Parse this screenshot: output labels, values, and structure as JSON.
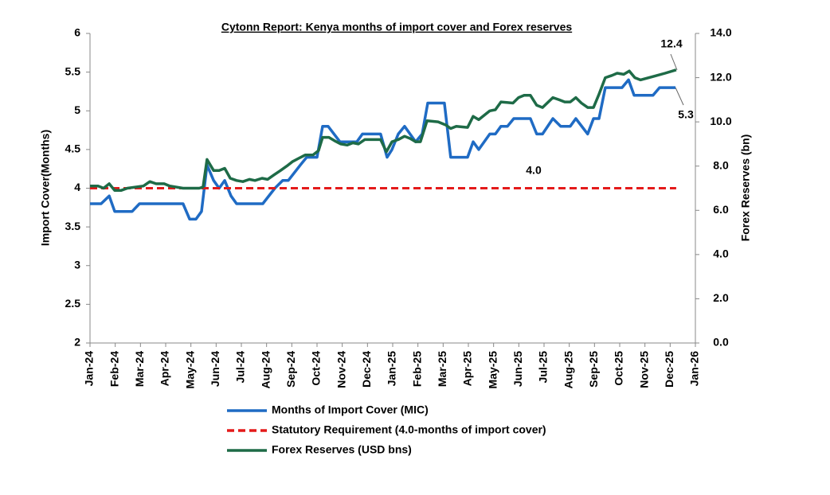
{
  "chart_data": {
    "type": "line",
    "title": "Cytonn Report: Kenya months of import cover and Forex reserves",
    "ylabel": "Import Cover(Months)",
    "y2label": "Forex Reserves (bn)",
    "xlim": [
      0,
      24
    ],
    "xticks": [
      {
        "value": 0,
        "label": "Jan-24"
      },
      {
        "value": 1,
        "label": "Feb-24"
      },
      {
        "value": 2,
        "label": "Mar-24"
      },
      {
        "value": 3,
        "label": "Apr-24"
      },
      {
        "value": 4,
        "label": "May-24"
      },
      {
        "value": 5,
        "label": "Jun-24"
      },
      {
        "value": 6,
        "label": "Jul-24"
      },
      {
        "value": 7,
        "label": "Aug-24"
      },
      {
        "value": 8,
        "label": "Sep-24"
      },
      {
        "value": 9,
        "label": "Oct-24"
      },
      {
        "value": 10,
        "label": "Nov-24"
      },
      {
        "value": 11,
        "label": "Dec-24"
      },
      {
        "value": 12,
        "label": "Jan-25"
      },
      {
        "value": 13,
        "label": "Feb-25"
      },
      {
        "value": 14,
        "label": "Mar-25"
      },
      {
        "value": 15,
        "label": "Apr-25"
      },
      {
        "value": 16,
        "label": "May-25"
      },
      {
        "value": 17,
        "label": "Jun-25"
      },
      {
        "value": 18,
        "label": "Jul-25"
      },
      {
        "value": 19,
        "label": "Aug-25"
      },
      {
        "value": 20,
        "label": "Sep-25"
      },
      {
        "value": 21,
        "label": "Oct-25"
      },
      {
        "value": 22,
        "label": "Nov-25"
      },
      {
        "value": 23,
        "label": "Dec-25"
      },
      {
        "value": 24,
        "label": "Jan-26"
      }
    ],
    "ylim": [
      2,
      6
    ],
    "yticks": [
      2,
      2.5,
      3,
      3.5,
      4,
      4.5,
      5,
      5.5,
      6
    ],
    "y2lim": [
      0,
      14
    ],
    "y2ticks": [
      {
        "value": 0,
        "label": "0.0"
      },
      {
        "value": 2,
        "label": "2.0"
      },
      {
        "value": 4,
        "label": "4.0"
      },
      {
        "value": 6,
        "label": "6.0"
      },
      {
        "value": 8,
        "label": "8.0"
      },
      {
        "value": 10,
        "label": "10.0"
      },
      {
        "value": 12,
        "label": "12.0"
      },
      {
        "value": 14,
        "label": "14.0"
      }
    ],
    "grid": false,
    "series": [
      {
        "name": "Months of Import Cover (MIC)",
        "color": "#1f6bc4",
        "dash": false,
        "x": [
          0,
          0.44,
          0.76,
          0.98,
          1.67,
          1.96,
          3.69,
          3.95,
          4.2,
          4.42,
          4.64,
          4.9,
          5.12,
          5.34,
          5.59,
          5.81,
          6.85,
          7.33,
          7.64,
          7.86,
          8.34,
          8.59,
          9.0,
          9.22,
          9.44,
          9.91,
          10.58,
          10.8,
          11.52,
          11.78,
          11.97,
          12.22,
          12.47,
          12.69,
          12.91,
          13.17,
          13.39,
          14.05,
          14.3,
          14.97,
          15.19,
          15.41,
          15.85,
          16.07,
          16.29,
          16.55,
          16.8,
          17.46,
          17.71,
          17.94,
          18.35,
          18.66,
          19.04,
          19.26,
          19.73,
          19.96,
          20.18,
          20.43,
          21.09,
          21.35,
          21.57,
          22.32,
          22.58,
          23.21
        ],
        "values": [
          3.8,
          3.8,
          3.9,
          3.7,
          3.7,
          3.8,
          3.8,
          3.6,
          3.6,
          3.7,
          4.3,
          4.1,
          4.0,
          4.1,
          3.9,
          3.8,
          3.8,
          4.0,
          4.1,
          4.1,
          4.3,
          4.4,
          4.4,
          4.8,
          4.8,
          4.6,
          4.6,
          4.7,
          4.7,
          4.4,
          4.5,
          4.7,
          4.8,
          4.7,
          4.6,
          4.7,
          5.1,
          5.1,
          4.4,
          4.4,
          4.6,
          4.5,
          4.7,
          4.7,
          4.8,
          4.8,
          4.9,
          4.9,
          4.7,
          4.7,
          4.9,
          4.8,
          4.8,
          4.9,
          4.7,
          4.9,
          4.9,
          5.3,
          5.3,
          5.4,
          5.2,
          5.2,
          5.3,
          5.3
        ]
      },
      {
        "name": "Statutory Requirement (4.0-months of import cover)",
        "color": "#e41a1a",
        "dash": true,
        "x": [
          0,
          23.24
        ],
        "values": [
          4,
          4
        ]
      },
      {
        "name": "Forex Reserves (USD bns)",
        "color": "#1e6b47",
        "dash": false,
        "axis": "y2",
        "x": [
          0,
          0.32,
          0.54,
          0.76,
          0.98,
          1.23,
          1.48,
          2.12,
          2.37,
          2.62,
          2.94,
          3.16,
          3.69,
          4.33,
          4.48,
          4.64,
          4.9,
          5.12,
          5.34,
          5.56,
          5.81,
          6.06,
          6.32,
          6.54,
          6.82,
          7.04,
          7.29,
          7.55,
          7.8,
          8.02,
          8.27,
          8.53,
          8.84,
          9.06,
          9.22,
          9.47,
          9.69,
          9.94,
          10.2,
          10.42,
          10.64,
          10.89,
          11.15,
          11.52,
          11.75,
          11.97,
          12.22,
          12.47,
          12.69,
          12.91,
          13.1,
          13.36,
          13.8,
          14.12,
          14.3,
          14.52,
          14.97,
          15.19,
          15.41,
          15.63,
          15.85,
          16.07,
          16.29,
          16.77,
          16.99,
          17.21,
          17.46,
          17.71,
          17.94,
          18.35,
          18.6,
          18.82,
          19.04,
          19.26,
          19.48,
          19.73,
          19.96,
          20.18,
          20.43,
          20.69,
          20.9,
          21.16,
          21.38,
          21.6,
          21.82,
          22.32,
          22.8,
          23.24
        ],
        "values": [
          7.1,
          7.1,
          7.0,
          7.2,
          6.9,
          6.9,
          7.0,
          7.1,
          7.3,
          7.2,
          7.2,
          7.1,
          7.0,
          7.0,
          7.05,
          8.3,
          7.8,
          7.8,
          7.9,
          7.45,
          7.35,
          7.3,
          7.4,
          7.35,
          7.45,
          7.4,
          7.6,
          7.8,
          8.0,
          8.2,
          8.35,
          8.5,
          8.5,
          8.7,
          9.3,
          9.3,
          9.15,
          9.0,
          8.95,
          9.05,
          9.0,
          9.2,
          9.2,
          9.2,
          8.65,
          9.1,
          9.2,
          9.35,
          9.25,
          9.1,
          9.1,
          10.05,
          10.0,
          9.85,
          9.7,
          9.8,
          9.75,
          10.25,
          10.1,
          10.3,
          10.5,
          10.55,
          10.9,
          10.85,
          11.1,
          11.2,
          11.2,
          10.75,
          10.65,
          11.1,
          11.0,
          10.9,
          10.9,
          11.1,
          10.85,
          10.65,
          10.65,
          11.25,
          12.0,
          12.1,
          12.2,
          12.15,
          12.3,
          12.0,
          11.9,
          12.05,
          12.2,
          12.35
        ]
      }
    ],
    "annotations": [
      "12.4",
      "5.3",
      "4.0"
    ]
  }
}
